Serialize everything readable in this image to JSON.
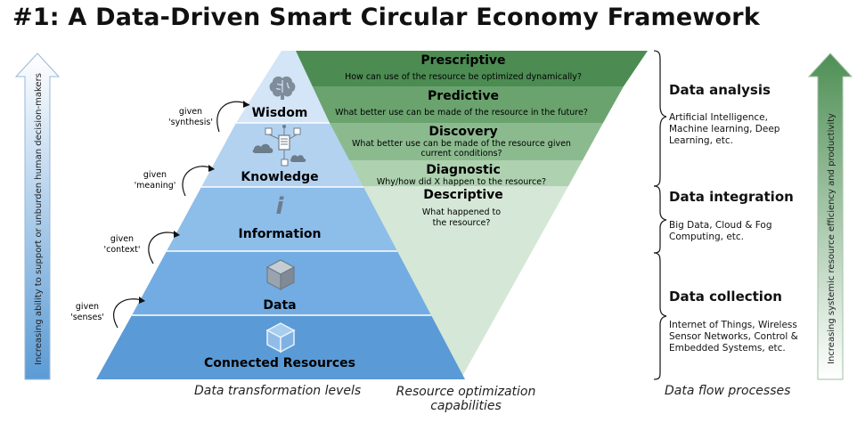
{
  "title": "#1: A Data-Driven Smart Circular Economy Framework",
  "left_arrow_label": "Increasing ability to support or unburden human decision-makers",
  "right_arrow_label": "Increasing systemic resource efficiency and productivity",
  "pyramid_levels": [
    {
      "label": "Wisdom",
      "icon": "brain-icon"
    },
    {
      "label": "Knowledge",
      "icon": "network-cloud-icon"
    },
    {
      "label": "Information",
      "icon": "info-icon"
    },
    {
      "label": "Data",
      "icon": "cube-icon"
    },
    {
      "label": "Connected Resources",
      "icon": "cube-outline-icon"
    }
  ],
  "givens": [
    {
      "line1": "given",
      "line2": "'synthesis'"
    },
    {
      "line1": "given",
      "line2": "'meaning'"
    },
    {
      "line1": "given",
      "line2": "'context'"
    },
    {
      "line1": "given",
      "line2": "'senses'"
    }
  ],
  "capabilities": [
    {
      "title": "Prescriptive",
      "desc1": "How can use of the resource be optimized dynamically?",
      "desc2": "",
      "color": "#4c8c52"
    },
    {
      "title": "Predictive",
      "desc1": "What better use can be made of the resource in the future?",
      "desc2": "",
      "color": "#6aa36e"
    },
    {
      "title": "Discovery",
      "desc1": "What better use can be made of the resource given",
      "desc2": "current conditions?",
      "color": "#8cba8f"
    },
    {
      "title": "Diagnostic",
      "desc1": "Why/how did X happen to the resource?",
      "desc2": "",
      "color": "#aed1b0"
    },
    {
      "title": "Descriptive",
      "desc1": "What happened to",
      "desc2": "the resource?",
      "color": "#d5e7d6"
    }
  ],
  "processes": [
    {
      "title": "Data analysis",
      "text": "Artificial Intelligence,\nMachine learning, Deep\nLearning, etc."
    },
    {
      "title": "Data integration",
      "text": "Big Data, Cloud & Fog\nComputing, etc."
    },
    {
      "title": "Data collection",
      "text": "Internet of Things, Wireless\nSensor Networks, Control &\nEmbedded Systems, etc."
    }
  ],
  "captions": {
    "levels": "Data transformation levels",
    "capabilities_1": "Resource optimization",
    "capabilities_2": "capabilities",
    "flows": "Data flow processes"
  },
  "colors": {
    "blue_dark": "#5a9ad6",
    "blue_mid": "#7db2e3",
    "blue_light": "#a9cdee",
    "blue_pale": "#cfe2f6",
    "green_dark": "#4c8c52"
  }
}
